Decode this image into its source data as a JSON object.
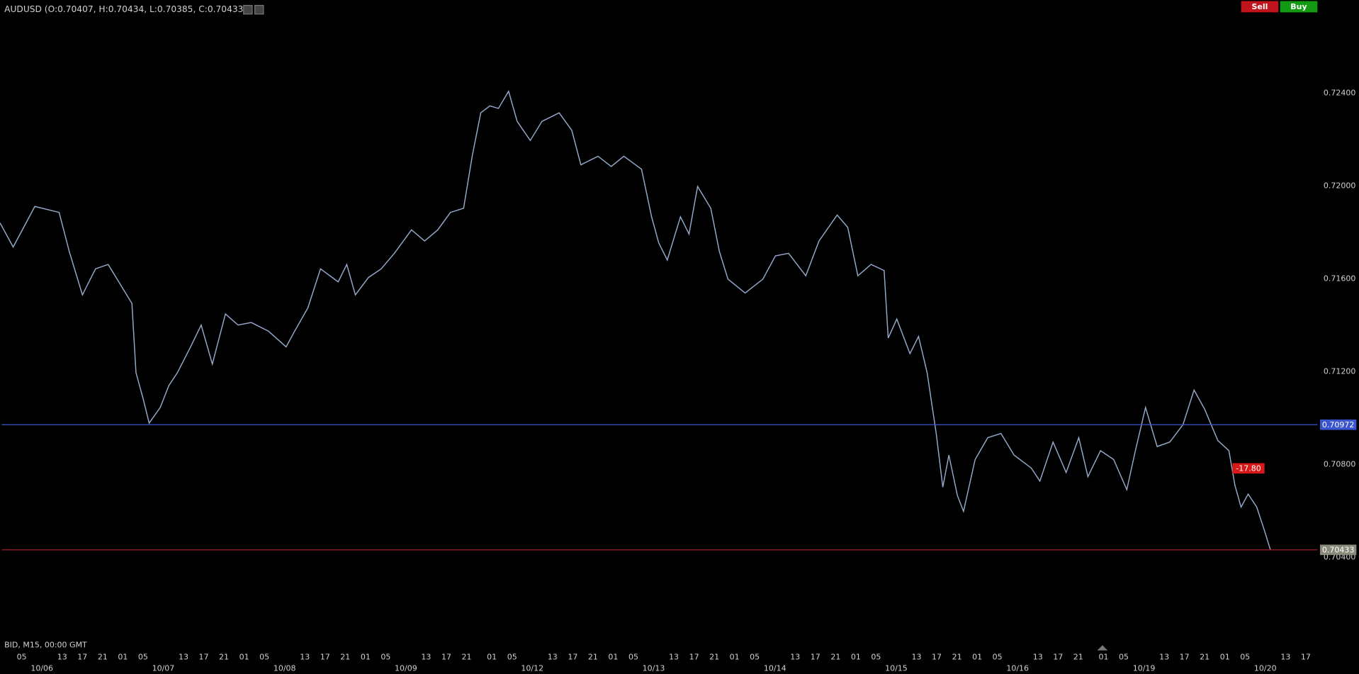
{
  "chart_data": {
    "type": "line",
    "title": "AUDUSD (O:0.70407, H:0.70434, L:0.70385, C:0.70433)",
    "footer": "BID, M15, 00:00 GMT",
    "buttons": [
      "Sell",
      "Buy"
    ],
    "annotation": "-17.80",
    "xlim": [
      0.7,
      261.3
    ],
    "ylim": [
      0.7,
      0.728
    ],
    "yticks": [
      {
        "value": 0.724,
        "label": "0.72400"
      },
      {
        "value": 0.72,
        "label": "0.72000"
      },
      {
        "value": 0.716,
        "label": "0.71600"
      },
      {
        "value": 0.712,
        "label": "0.71200"
      },
      {
        "value": 0.708,
        "label": "0.70800"
      },
      {
        "value": 0.704,
        "label": "0.70400"
      }
    ],
    "xticks": [
      {
        "value": 5,
        "label": "05"
      },
      {
        "value": 13,
        "label": "13"
      },
      {
        "value": 17,
        "label": "17"
      },
      {
        "value": 21,
        "label": "21"
      },
      {
        "value": 25,
        "label": "01"
      },
      {
        "value": 29,
        "label": "05"
      },
      {
        "value": 37,
        "label": "13"
      },
      {
        "value": 41,
        "label": "17"
      },
      {
        "value": 45,
        "label": "21"
      },
      {
        "value": 49,
        "label": "01"
      },
      {
        "value": 53,
        "label": "05"
      },
      {
        "value": 61,
        "label": "13"
      },
      {
        "value": 65,
        "label": "17"
      },
      {
        "value": 69,
        "label": "21"
      },
      {
        "value": 73,
        "label": "01"
      },
      {
        "value": 77,
        "label": "05"
      },
      {
        "value": 85,
        "label": "13"
      },
      {
        "value": 89,
        "label": "17"
      },
      {
        "value": 93,
        "label": "21"
      },
      {
        "value": 98,
        "label": "01"
      },
      {
        "value": 102,
        "label": "05"
      },
      {
        "value": 110,
        "label": "13"
      },
      {
        "value": 114,
        "label": "17"
      },
      {
        "value": 118,
        "label": "21"
      },
      {
        "value": 122,
        "label": "01"
      },
      {
        "value": 126,
        "label": "05"
      },
      {
        "value": 134,
        "label": "13"
      },
      {
        "value": 138,
        "label": "17"
      },
      {
        "value": 142,
        "label": "21"
      },
      {
        "value": 146,
        "label": "01"
      },
      {
        "value": 150,
        "label": "05"
      },
      {
        "value": 158,
        "label": "13"
      },
      {
        "value": 162,
        "label": "17"
      },
      {
        "value": 166,
        "label": "21"
      },
      {
        "value": 170,
        "label": "01"
      },
      {
        "value": 174,
        "label": "05"
      },
      {
        "value": 182,
        "label": "13"
      },
      {
        "value": 186,
        "label": "17"
      },
      {
        "value": 190,
        "label": "21"
      },
      {
        "value": 194,
        "label": "01"
      },
      {
        "value": 198,
        "label": "05"
      },
      {
        "value": 206,
        "label": "13"
      },
      {
        "value": 210,
        "label": "17"
      },
      {
        "value": 214,
        "label": "21"
      },
      {
        "value": 219,
        "label": "01"
      },
      {
        "value": 223,
        "label": "05"
      },
      {
        "value": 231,
        "label": "13"
      },
      {
        "value": 235,
        "label": "17"
      },
      {
        "value": 239,
        "label": "21"
      },
      {
        "value": 243,
        "label": "01"
      },
      {
        "value": 247,
        "label": "05"
      },
      {
        "value": 255,
        "label": "13"
      },
      {
        "value": 259,
        "label": "17"
      }
    ],
    "date_ticks": [
      {
        "value": 9,
        "label": "10/06"
      },
      {
        "value": 33,
        "label": "10/07"
      },
      {
        "value": 57,
        "label": "10/08"
      },
      {
        "value": 81,
        "label": "10/09"
      },
      {
        "value": 106,
        "label": "10/12"
      },
      {
        "value": 130,
        "label": "10/13"
      },
      {
        "value": 154,
        "label": "10/14"
      },
      {
        "value": 178,
        "label": "10/15"
      },
      {
        "value": 202,
        "label": "10/16"
      },
      {
        "value": 227,
        "label": "10/19"
      },
      {
        "value": 251,
        "label": "10/20"
      }
    ],
    "hlines": [
      {
        "value": 0.70972,
        "color": "#3b55d0",
        "label_bg": "#3b55d0"
      },
      {
        "value": 0.70433,
        "color": "#b0202a",
        "label_bg": "#8a8a7a"
      }
    ],
    "x": [
      0.7,
      3.3,
      7.6,
      12.4,
      14.4,
      17.0,
      19.6,
      22.1,
      24.7,
      26.8,
      27.6,
      29.0,
      30.2,
      32.4,
      34.1,
      35.8,
      38.4,
      40.5,
      42.7,
      45.3,
      47.8,
      50.4,
      53.8,
      57.3,
      59.0,
      61.6,
      64.1,
      67.6,
      69.3,
      71.0,
      73.6,
      76.1,
      78.7,
      82.1,
      84.7,
      87.3,
      89.8,
      92.4,
      94.1,
      95.8,
      97.6,
      99.3,
      101.3,
      103.0,
      105.6,
      107.9,
      111.3,
      113.8,
      115.6,
      119.0,
      121.6,
      124.1,
      127.6,
      129.6,
      131.0,
      132.7,
      135.3,
      137.0,
      138.7,
      141.3,
      143.0,
      144.7,
      148.1,
      151.6,
      154.1,
      156.7,
      160.1,
      162.7,
      166.3,
      168.4,
      170.4,
      173.0,
      175.6,
      176.4,
      178.1,
      180.7,
      182.4,
      184.1,
      185.9,
      187.2,
      188.4,
      190.1,
      191.3,
      193.6,
      196.1,
      198.7,
      201.3,
      204.7,
      206.4,
      209.0,
      211.6,
      214.1,
      215.9,
      218.4,
      221.0,
      223.6,
      225.3,
      227.3,
      229.6,
      232.1,
      234.7,
      236.9,
      239.0,
      241.6,
      243.8,
      245.0,
      246.2,
      247.6,
      249.3,
      250.7,
      252.0
    ],
    "series": [
      {
        "color": "#93a9c9",
        "values": [
          0.71841,
          0.71737,
          0.71912,
          0.71886,
          0.71718,
          0.71531,
          0.71643,
          0.71662,
          0.71569,
          0.71494,
          0.71196,
          0.71084,
          0.70979,
          0.71046,
          0.7114,
          0.71196,
          0.71307,
          0.71401,
          0.71233,
          0.71449,
          0.71401,
          0.71412,
          0.71375,
          0.71307,
          0.71375,
          0.71475,
          0.71643,
          0.71587,
          0.71662,
          0.71531,
          0.71606,
          0.71643,
          0.7171,
          0.71811,
          0.71763,
          0.71811,
          0.71886,
          0.71904,
          0.72128,
          0.72315,
          0.72345,
          0.72334,
          0.72408,
          0.72278,
          0.72196,
          0.72278,
          0.72315,
          0.7224,
          0.72091,
          0.72128,
          0.72084,
          0.72128,
          0.72072,
          0.71867,
          0.71755,
          0.71681,
          0.71867,
          0.71793,
          0.71998,
          0.71904,
          0.71718,
          0.71599,
          0.71539,
          0.71599,
          0.71699,
          0.7171,
          0.71613,
          0.71763,
          0.71875,
          0.71822,
          0.71613,
          0.71662,
          0.71636,
          0.71345,
          0.71427,
          0.71278,
          0.71352,
          0.71196,
          0.70934,
          0.70703,
          0.70841,
          0.70666,
          0.70599,
          0.70822,
          0.70916,
          0.70934,
          0.70841,
          0.70785,
          0.70729,
          0.70897,
          0.70766,
          0.70916,
          0.70748,
          0.7086,
          0.70822,
          0.70692,
          0.7086,
          0.71046,
          0.70878,
          0.70897,
          0.70972,
          0.71121,
          0.71039,
          0.70904,
          0.7086,
          0.7071,
          0.70617,
          0.70673,
          0.70617,
          0.70524,
          0.70433
        ]
      }
    ]
  }
}
